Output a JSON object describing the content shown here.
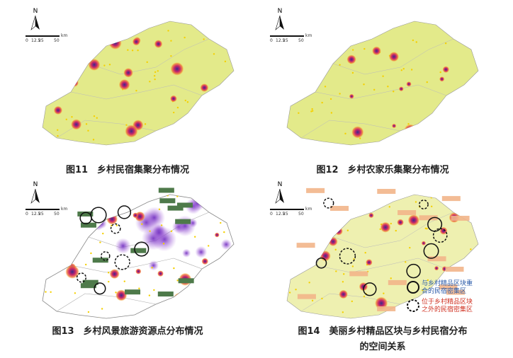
{
  "scale": {
    "north": "N",
    "unit": "km",
    "ticks": [
      "0",
      "12.5",
      "25",
      "50"
    ]
  },
  "figures": [
    {
      "caption": "图11　乡村民宿集聚分布情况"
    },
    {
      "caption": "图12　乡村农家乐集聚分布情况"
    },
    {
      "caption": "图13　乡村风景旅游资源点分布情况"
    },
    {
      "caption_lines": [
        "图14　美丽乡村精品区块与乡村民宿分布",
        "的空间关系"
      ],
      "legend": [
        {
          "lines": [
            "与乡村精品区块重",
            "合的民宿密集区"
          ]
        },
        {
          "lines": [
            "位于乡村精品区块",
            "之外的民宿密集区"
          ]
        }
      ]
    }
  ]
}
